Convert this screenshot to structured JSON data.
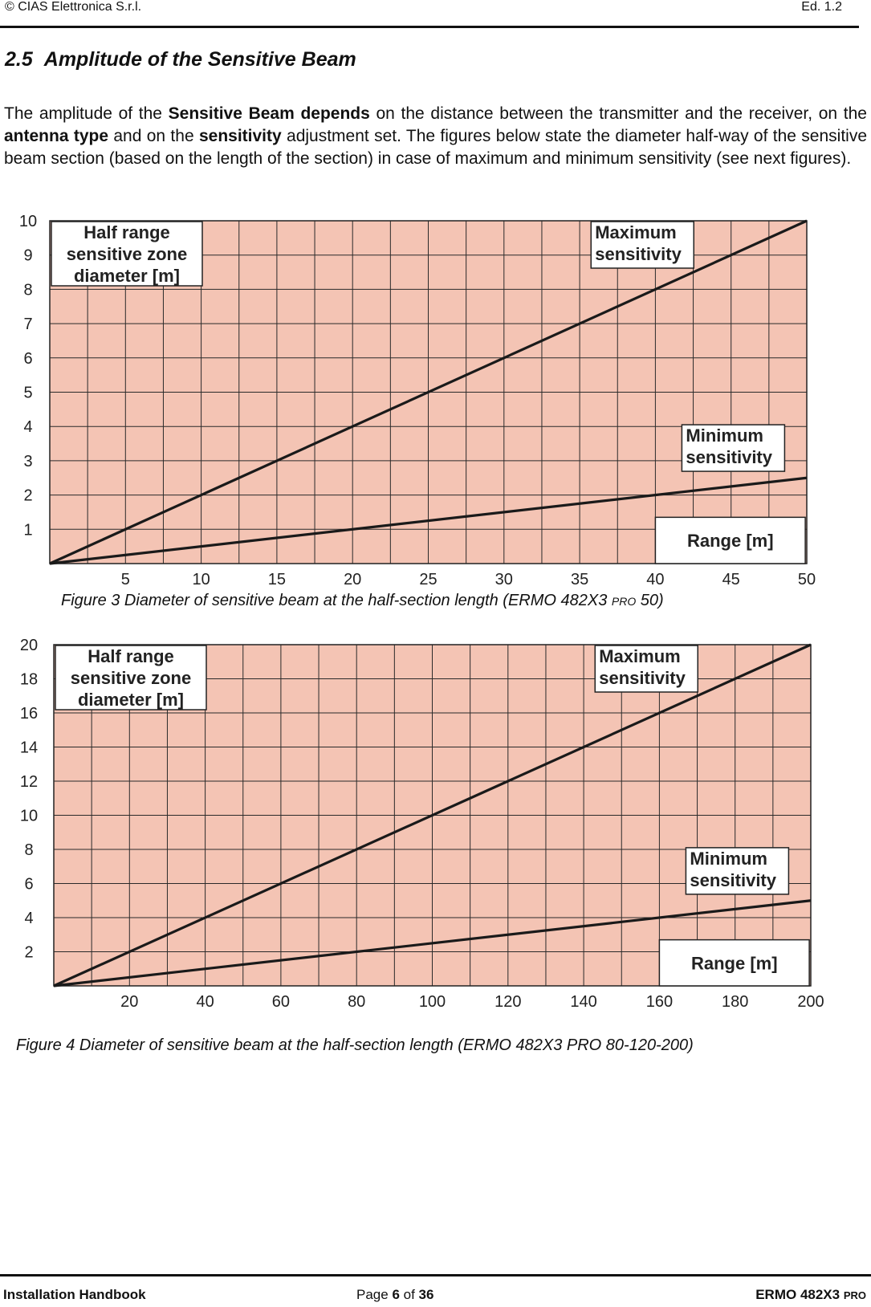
{
  "header": {
    "left": "©  CIAS Elettronica S.r.l.",
    "right": "Ed. 1.2"
  },
  "section": {
    "number": "2.5",
    "title": "Amplitude of the Sensitive Beam"
  },
  "paragraph": [
    {
      "text": "The amplitude of the ",
      "bold": false
    },
    {
      "text": "Sensitive Beam depends",
      "bold": true
    },
    {
      "text": " on the distance between the transmitter and the receiver, on the ",
      "bold": false
    },
    {
      "text": "antenna type",
      "bold": true
    },
    {
      "text": " and on the ",
      "bold": false
    },
    {
      "text": "sensitivity",
      "bold": true
    },
    {
      "text": " adjustment set. The figures below state the diameter half-way of the sensitive beam section (based on the length of the section) in case of maximum and minimum sensitivity (see next figures).",
      "bold": false
    }
  ],
  "chart_data": [
    {
      "type": "line",
      "ylabel": "Half range sensitive zone diameter [m]",
      "ylabel_lines": [
        "Half range",
        "sensitive zone",
        "diameter [m]"
      ],
      "xlabel": "Range [m]",
      "xlim": [
        0,
        50
      ],
      "ylim": [
        0,
        10
      ],
      "x_ticks": [
        5,
        10,
        15,
        20,
        25,
        30,
        35,
        40,
        45,
        50
      ],
      "y_ticks": [
        1,
        2,
        3,
        4,
        5,
        6,
        7,
        8,
        9,
        10
      ],
      "grid": true,
      "series": [
        {
          "name": "Maximum sensitivity",
          "label_lines": [
            "Maximum",
            "sensitivity"
          ],
          "x": [
            0,
            50
          ],
          "y": [
            0,
            10
          ]
        },
        {
          "name": "Minimum sensitivity",
          "label_lines": [
            "Minimum",
            "sensitivity"
          ],
          "x": [
            0,
            50
          ],
          "y": [
            0,
            2.5
          ]
        }
      ],
      "colors": {
        "background": "#f4c4b4",
        "grid": "#2a2a2a",
        "line": "#1a1a1a"
      }
    },
    {
      "type": "line",
      "ylabel": "Half range sensitive zone diameter [m]",
      "ylabel_lines": [
        "Half range",
        "sensitive zone",
        "diameter [m]"
      ],
      "xlabel": "Range [m]",
      "xlim": [
        0,
        200
      ],
      "ylim": [
        0,
        20
      ],
      "x_ticks": [
        20,
        40,
        60,
        80,
        100,
        120,
        140,
        160,
        180,
        200
      ],
      "y_ticks": [
        2,
        4,
        6,
        8,
        10,
        12,
        14,
        16,
        18,
        20
      ],
      "grid": true,
      "series": [
        {
          "name": "Maximum sensitivity",
          "label_lines": [
            "Maximum",
            "sensitivity"
          ],
          "x": [
            0,
            200
          ],
          "y": [
            0,
            20
          ]
        },
        {
          "name": "Minimum sensitivity",
          "label_lines": [
            "Minimum",
            "sensitivity"
          ],
          "x": [
            0,
            200
          ],
          "y": [
            0,
            5
          ]
        }
      ],
      "colors": {
        "background": "#f4c4b4",
        "grid": "#2a2a2a",
        "line": "#1a1a1a"
      }
    }
  ],
  "figure3": {
    "caption_main": "Figure 3  Diameter of sensitive beam  at the half-section length (ERMO 482X3 ",
    "caption_sc": "PRO",
    "caption_end": " 50)"
  },
  "figure4": {
    "caption": "Figure 4 Diameter of sensitive beam at the half-section length (ERMO 482X3 PRO 80-120-200)"
  },
  "footer": {
    "left": "Installation Handbook",
    "page_prefix": "Page ",
    "page": "6",
    "page_mid": " of ",
    "pages": "36",
    "right_main": "ERMO 482X3 ",
    "right_sc": "PRO"
  }
}
